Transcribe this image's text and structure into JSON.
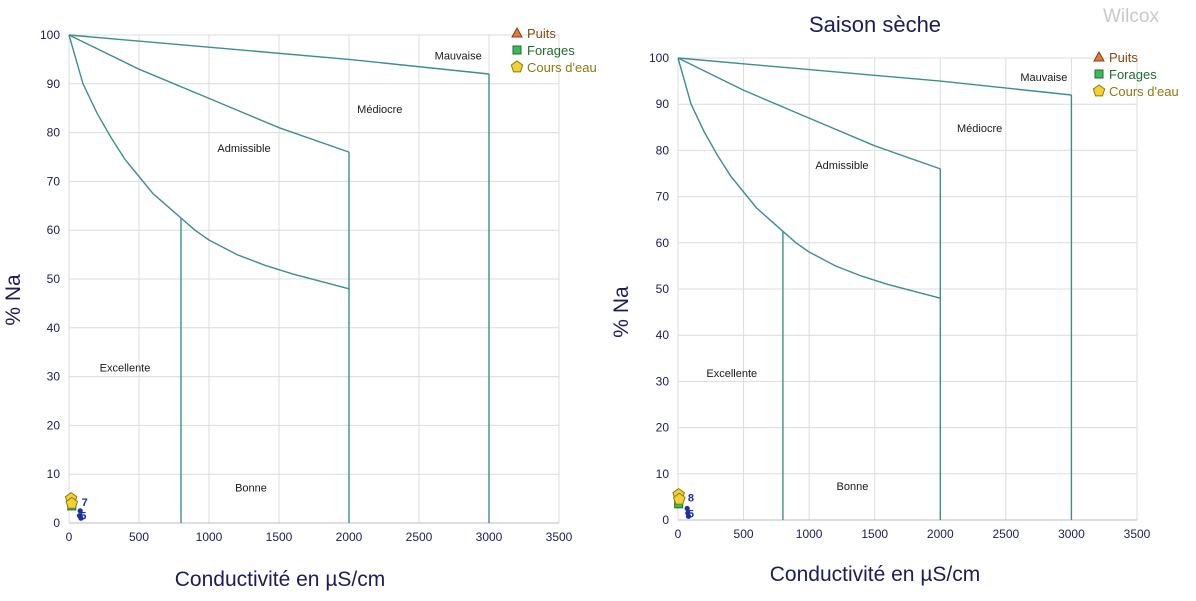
{
  "watermark": "Wilcox",
  "charts": [
    {
      "title": "",
      "xlabel": "Conductivité en µS/cm",
      "ylabel": "% Na",
      "xlim": [
        0,
        3500
      ],
      "ylim": [
        0,
        100
      ],
      "xticks": [
        "0",
        "500",
        "1000",
        "1500",
        "2000",
        "2500",
        "3000",
        "3500"
      ],
      "yticks": [
        "0",
        "10",
        "20",
        "30",
        "40",
        "50",
        "60",
        "70",
        "80",
        "90",
        "100"
      ],
      "zones": [
        "Excellente",
        "Bonne",
        "Admissible",
        "Médiocre",
        "Mauvaise"
      ],
      "legend": [
        {
          "label": "Puits",
          "shape": "triangle",
          "color": "#e07a3f"
        },
        {
          "label": "Forages",
          "shape": "square",
          "color": "#3cb95a"
        },
        {
          "label": "Cours d'eau",
          "shape": "pentagon",
          "color": "#f2d135"
        }
      ],
      "point_labels": [
        "7",
        "5"
      ]
    },
    {
      "title": "Saison sèche",
      "xlabel": "Conductivité en µS/cm",
      "ylabel": "% Na",
      "xlim": [
        0,
        3500
      ],
      "ylim": [
        0,
        100
      ],
      "xticks": [
        "0",
        "500",
        "1000",
        "1500",
        "2000",
        "2500",
        "3000",
        "3500"
      ],
      "yticks": [
        "0",
        "10",
        "20",
        "30",
        "40",
        "50",
        "60",
        "70",
        "80",
        "90",
        "100"
      ],
      "zones": [
        "Excellente",
        "Bonne",
        "Admissible",
        "Médiocre",
        "Mauvaise"
      ],
      "legend": [
        {
          "label": "Puits",
          "shape": "triangle",
          "color": "#e07a3f"
        },
        {
          "label": "Forages",
          "shape": "square",
          "color": "#3cb95a"
        },
        {
          "label": "Cours d'eau",
          "shape": "pentagon",
          "color": "#f2d135"
        }
      ],
      "point_labels": [
        "8",
        "5"
      ]
    }
  ],
  "chart_data": [
    {
      "type": "scatter",
      "title": "",
      "xlabel": "Conductivité en µS/cm",
      "ylabel": "% Na",
      "xlim": [
        0,
        3500
      ],
      "ylim": [
        0,
        100
      ],
      "grid": true,
      "legend_position": "top-right",
      "boundaries": [
        {
          "name": "Excellente/Bonne",
          "points": [
            [
              0,
              100
            ],
            [
              100,
              90
            ],
            [
              200,
              84
            ],
            [
              300,
              79
            ],
            [
              400,
              74.5
            ],
            [
              500,
              71
            ],
            [
              600,
              67.5
            ],
            [
              700,
              65
            ],
            [
              800,
              62.5
            ]
          ]
        },
        {
          "name": "Bonne/Admissible",
          "points": [
            [
              800,
              62.5
            ],
            [
              900,
              60
            ],
            [
              1000,
              58
            ],
            [
              1200,
              55
            ],
            [
              1400,
              52.8
            ],
            [
              1600,
              51
            ],
            [
              1800,
              49.5
            ],
            [
              2000,
              48
            ]
          ]
        },
        {
          "name": "Admissible/Médiocre",
          "points": [
            [
              0,
              100
            ],
            [
              500,
              93
            ],
            [
              1000,
              87
            ],
            [
              1500,
              81
            ],
            [
              2000,
              76
            ]
          ]
        },
        {
          "name": "Médiocre/Mauvaise",
          "points": [
            [
              0,
              100
            ],
            [
              1000,
              97.5
            ],
            [
              2000,
              95
            ],
            [
              3000,
              92
            ]
          ]
        },
        {
          "name": "vertical 800",
          "points": [
            [
              800,
              0
            ],
            [
              800,
              62.5
            ]
          ]
        },
        {
          "name": "vertical 2000",
          "points": [
            [
              2000,
              0
            ],
            [
              2000,
              76
            ]
          ]
        },
        {
          "name": "vertical 3000",
          "points": [
            [
              3000,
              0
            ],
            [
              3000,
              92
            ]
          ]
        }
      ],
      "zone_labels": [
        {
          "text": "Excellente",
          "x": 400,
          "y": 31
        },
        {
          "text": "Bonne",
          "x": 1300,
          "y": 6.5
        },
        {
          "text": "Admissible",
          "x": 1250,
          "y": 76
        },
        {
          "text": "Médiocre",
          "x": 2220,
          "y": 84
        },
        {
          "text": "Mauvaise",
          "x": 2780,
          "y": 95
        }
      ],
      "series": [
        {
          "name": "Puits",
          "shape": "triangle",
          "x": [],
          "y": []
        },
        {
          "name": "Forages",
          "shape": "square",
          "x": [
            20
          ],
          "y": [
            3.5
          ]
        },
        {
          "name": "Cours d'eau",
          "shape": "pentagon",
          "x": [
            15,
            20
          ],
          "y": [
            5,
            4
          ]
        },
        {
          "name": "",
          "shape": "dot",
          "x": [
            75,
            80,
            85
          ],
          "y": [
            1.5,
            2.5,
            1
          ]
        }
      ],
      "annotations": [
        {
          "text": "7",
          "x": 90,
          "y": 3.5
        },
        {
          "text": "5",
          "x": 80,
          "y": 0.7
        }
      ]
    },
    {
      "type": "scatter",
      "title": "Saison sèche",
      "xlabel": "Conductivité en µS/cm",
      "ylabel": "% Na",
      "xlim": [
        0,
        3500
      ],
      "ylim": [
        0,
        100
      ],
      "grid": true,
      "legend_position": "top-right",
      "boundaries": [
        {
          "name": "Excellente/Bonne",
          "points": [
            [
              0,
              100
            ],
            [
              100,
              90
            ],
            [
              200,
              84
            ],
            [
              300,
              79
            ],
            [
              400,
              74.5
            ],
            [
              500,
              71
            ],
            [
              600,
              67.5
            ],
            [
              700,
              65
            ],
            [
              800,
              62.5
            ]
          ]
        },
        {
          "name": "Bonne/Admissible",
          "points": [
            [
              800,
              62.5
            ],
            [
              900,
              60
            ],
            [
              1000,
              58
            ],
            [
              1200,
              55
            ],
            [
              1400,
              52.8
            ],
            [
              1600,
              51
            ],
            [
              1800,
              49.5
            ],
            [
              2000,
              48
            ]
          ]
        },
        {
          "name": "Admissible/Médiocre",
          "points": [
            [
              0,
              100
            ],
            [
              500,
              93
            ],
            [
              1000,
              87
            ],
            [
              1500,
              81
            ],
            [
              2000,
              76
            ]
          ]
        },
        {
          "name": "Médiocre/Mauvaise",
          "points": [
            [
              0,
              100
            ],
            [
              1000,
              97.5
            ],
            [
              2000,
              95
            ],
            [
              3000,
              92
            ]
          ]
        },
        {
          "name": "vertical 800",
          "points": [
            [
              800,
              0
            ],
            [
              800,
              62.5
            ]
          ]
        },
        {
          "name": "vertical 2000",
          "points": [
            [
              2000,
              0
            ],
            [
              2000,
              76
            ]
          ]
        },
        {
          "name": "vertical 3000",
          "points": [
            [
              3000,
              0
            ],
            [
              3000,
              92
            ]
          ]
        }
      ],
      "zone_labels": [
        {
          "text": "Excellente",
          "x": 410,
          "y": 31
        },
        {
          "text": "Bonne",
          "x": 1330,
          "y": 6.5
        },
        {
          "text": "Admissible",
          "x": 1250,
          "y": 76
        },
        {
          "text": "Médiocre",
          "x": 2300,
          "y": 84
        },
        {
          "text": "Mauvaise",
          "x": 2790,
          "y": 95
        }
      ],
      "series": [
        {
          "name": "Puits",
          "shape": "triangle",
          "x": [],
          "y": []
        },
        {
          "name": "Forages",
          "shape": "square",
          "x": [
            5
          ],
          "y": [
            3.5
          ]
        },
        {
          "name": "Cours d'eau",
          "shape": "pentagon",
          "x": [
            5,
            10
          ],
          "y": [
            5.5,
            4.5
          ]
        },
        {
          "name": "",
          "shape": "dot",
          "x": [
            70,
            75,
            80
          ],
          "y": [
            2.5,
            1.5,
            0.8
          ]
        }
      ],
      "annotations": [
        {
          "text": "8",
          "x": 75,
          "y": 4
        },
        {
          "text": "5",
          "x": 75,
          "y": 0.5
        }
      ]
    }
  ]
}
